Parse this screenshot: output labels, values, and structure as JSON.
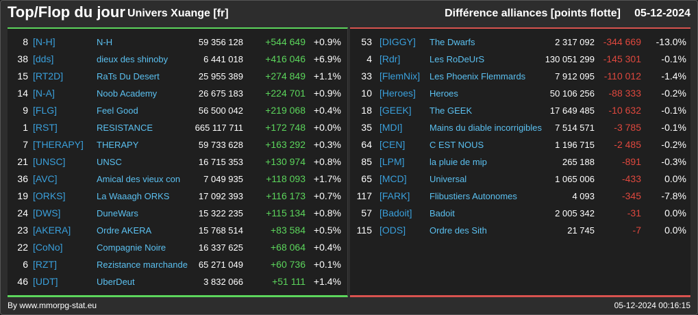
{
  "header": {
    "title": "Top/Flop du jour",
    "universe": "Univers Xuange [fr]",
    "subtitle": "Différence alliances [points flotte]",
    "date": "05-12-2024"
  },
  "top": [
    {
      "rank": "8",
      "tag": "[N-H]",
      "name": "N-H",
      "points": "59 356 128",
      "diff": "+544 649",
      "pct": "+0.9%"
    },
    {
      "rank": "38",
      "tag": "[dds]",
      "name": "dieux des shinoby",
      "points": "6 441 018",
      "diff": "+416 046",
      "pct": "+6.9%"
    },
    {
      "rank": "15",
      "tag": "[RT2D]",
      "name": "RaTs Du Desert",
      "points": "25 955 389",
      "diff": "+274 849",
      "pct": "+1.1%"
    },
    {
      "rank": "14",
      "tag": "[N-A]",
      "name": "Noob Academy",
      "points": "26 675 183",
      "diff": "+224 701",
      "pct": "+0.9%"
    },
    {
      "rank": "9",
      "tag": "[FLG]",
      "name": "Feel Good",
      "points": "56 500 042",
      "diff": "+219 068",
      "pct": "+0.4%"
    },
    {
      "rank": "1",
      "tag": "[RST]",
      "name": "RESISTANCE",
      "points": "665 117 711",
      "diff": "+172 748",
      "pct": "+0.0%"
    },
    {
      "rank": "7",
      "tag": "[THERAPY]",
      "name": "THERAPY",
      "points": "59 733 628",
      "diff": "+163 292",
      "pct": "+0.3%"
    },
    {
      "rank": "21",
      "tag": "[UNSC]",
      "name": "UNSC",
      "points": "16 715 353",
      "diff": "+130 974",
      "pct": "+0.8%"
    },
    {
      "rank": "36",
      "tag": "[AVC]",
      "name": "Amical des vieux con",
      "points": "7 049 935",
      "diff": "+118 093",
      "pct": "+1.7%"
    },
    {
      "rank": "19",
      "tag": "[ORKS]",
      "name": "La Waaagh ORKS",
      "points": "17 092 393",
      "diff": "+116 173",
      "pct": "+0.7%"
    },
    {
      "rank": "24",
      "tag": "[DWS]",
      "name": "DuneWars",
      "points": "15 322 235",
      "diff": "+115 134",
      "pct": "+0.8%"
    },
    {
      "rank": "23",
      "tag": "[AKERA]",
      "name": "Ordre AKERA",
      "points": "15 768 514",
      "diff": "+83 584",
      "pct": "+0.5%"
    },
    {
      "rank": "22",
      "tag": "[CoNo]",
      "name": "Compagnie Noire",
      "points": "16 337 625",
      "diff": "+68 064",
      "pct": "+0.4%"
    },
    {
      "rank": "6",
      "tag": "[RZT]",
      "name": "Rezistance marchande",
      "points": "65 271 049",
      "diff": "+60 736",
      "pct": "+0.1%"
    },
    {
      "rank": "46",
      "tag": "[UDT]",
      "name": "UberDeut",
      "points": "3 832 066",
      "diff": "+51 111",
      "pct": "+1.4%"
    }
  ],
  "flop": [
    {
      "rank": "53",
      "tag": "[DIGGY]",
      "name": "The Dwarfs",
      "points": "2 317 092",
      "diff": "-344 669",
      "pct": "-13.0%"
    },
    {
      "rank": "4",
      "tag": "[Rdr]",
      "name": "Les RoDeUrS",
      "points": "130 051 299",
      "diff": "-145 301",
      "pct": "-0.1%"
    },
    {
      "rank": "33",
      "tag": "[FlemNix]",
      "name": "Les Phoenix Flemmards",
      "points": "7 912 095",
      "diff": "-110 012",
      "pct": "-1.4%"
    },
    {
      "rank": "10",
      "tag": "[Heroes]",
      "name": "Heroes",
      "points": "50 106 256",
      "diff": "-88 333",
      "pct": "-0.2%"
    },
    {
      "rank": "18",
      "tag": "[GEEK]",
      "name": "The GEEK",
      "points": "17 649 485",
      "diff": "-10 632",
      "pct": "-0.1%"
    },
    {
      "rank": "35",
      "tag": "[MDI]",
      "name": "Mains du diable incorrigibles",
      "points": "7 514 571",
      "diff": "-3 785",
      "pct": "-0.1%"
    },
    {
      "rank": "64",
      "tag": "[CEN]",
      "name": "C EST NOUS",
      "points": "1 196 715",
      "diff": "-2 485",
      "pct": "-0.2%"
    },
    {
      "rank": "85",
      "tag": "[LPM]",
      "name": "la pluie de mip",
      "points": "265 188",
      "diff": "-891",
      "pct": "-0.3%"
    },
    {
      "rank": "65",
      "tag": "[MCD]",
      "name": "Universal",
      "points": "1 065 006",
      "diff": "-433",
      "pct": "0.0%"
    },
    {
      "rank": "117",
      "tag": "[FARK]",
      "name": "Flibustiers Autonomes",
      "points": "4 093",
      "diff": "-345",
      "pct": "-7.8%"
    },
    {
      "rank": "57",
      "tag": "[Badoit]",
      "name": "Badoit",
      "points": "2 005 342",
      "diff": "-31",
      "pct": "0.0%"
    },
    {
      "rank": "115",
      "tag": "[ODS]",
      "name": "Ordre des Sith",
      "points": "21 745",
      "diff": "-7",
      "pct": "0.0%"
    }
  ],
  "footer": {
    "source": "By www.mmorpg-stat.eu",
    "timestamp": "05-12-2024 00:16:15"
  },
  "colors": {
    "positive": "#5cd65c",
    "negative": "#e0483e",
    "tag": "#3aa0dc",
    "name": "#5bc0f0"
  }
}
